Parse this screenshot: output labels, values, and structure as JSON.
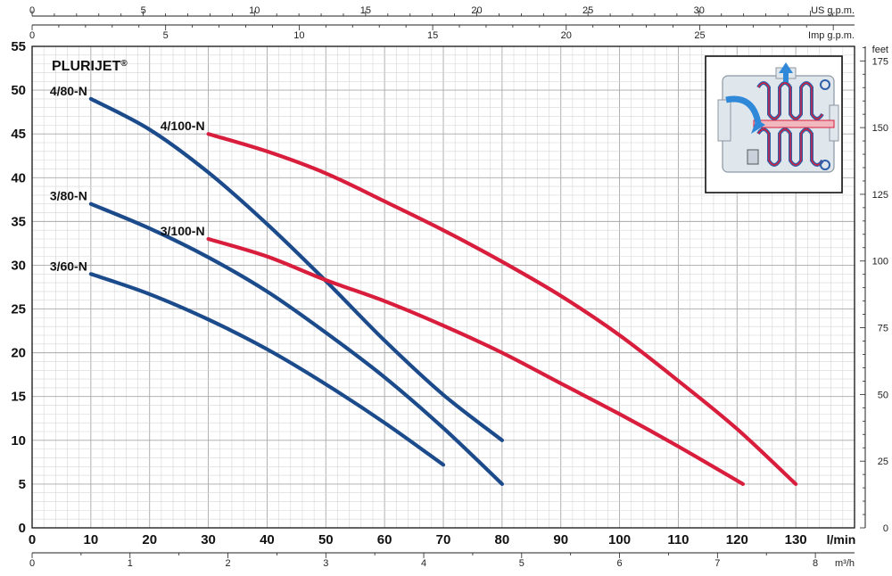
{
  "chart_data": {
    "type": "line",
    "title": "PLURIJET",
    "title_mark": "®",
    "grid": true,
    "xlim": [
      0,
      140
    ],
    "ylim": [
      0,
      55
    ],
    "x_unit": "l/min",
    "x_ticks": [
      "0",
      "10",
      "20",
      "30",
      "40",
      "50",
      "60",
      "70",
      "80",
      "90",
      "100",
      "110",
      "120",
      "130"
    ],
    "y_ticks": [
      "0",
      "5",
      "10",
      "15",
      "20",
      "25",
      "30",
      "35",
      "40",
      "45",
      "50",
      "55"
    ],
    "secondary_axes": {
      "top_us": {
        "unit": "US g.p.m.",
        "ticks": [
          "0",
          "5",
          "10",
          "15",
          "20",
          "25",
          "30"
        ],
        "values": [
          0,
          5,
          10,
          15,
          20,
          25,
          30
        ],
        "lpm_per_unit": 3.785
      },
      "top_imp": {
        "unit": "Imp g.p.m.",
        "ticks": [
          "0",
          "5",
          "10",
          "15",
          "20",
          "25"
        ],
        "values": [
          0,
          5,
          10,
          15,
          20,
          25
        ],
        "lpm_per_unit": 4.546
      },
      "bottom_m3h": {
        "unit": "m³/h",
        "ticks": [
          "0",
          "1",
          "2",
          "3",
          "4",
          "5",
          "6",
          "7",
          "8"
        ],
        "values": [
          0,
          1,
          2,
          3,
          4,
          5,
          6,
          7,
          8
        ],
        "lpm_per_unit": 16.6667
      },
      "right_feet": {
        "unit": "feet",
        "ticks": [
          "0",
          "25",
          "50",
          "75",
          "100",
          "125",
          "150",
          "175"
        ],
        "values": [
          0,
          25,
          50,
          75,
          100,
          125,
          150,
          175
        ],
        "m_per_unit": 0.3048
      }
    },
    "series": [
      {
        "name": "4/80-N",
        "color": "#1c4b8c",
        "x": [
          10,
          20,
          30,
          40,
          50,
          60,
          70,
          80
        ],
        "y": [
          49,
          45.5,
          40.6,
          34.7,
          28.2,
          21.4,
          15.2,
          10
        ]
      },
      {
        "name": "3/80-N",
        "color": "#1c4b8c",
        "x": [
          10,
          20,
          30,
          40,
          50,
          60,
          70,
          80
        ],
        "y": [
          37,
          34.2,
          30.9,
          27,
          22.3,
          17.2,
          11.4,
          5
        ]
      },
      {
        "name": "3/60-N",
        "color": "#1c4b8c",
        "x": [
          10,
          20,
          30,
          40,
          50,
          60,
          70
        ],
        "y": [
          29,
          26.7,
          23.8,
          20.4,
          16.4,
          12,
          7.2
        ]
      },
      {
        "name": "4/100-N",
        "color": "#d81e3c",
        "x": [
          30,
          40,
          50,
          60,
          70,
          80,
          90,
          100,
          110,
          120,
          130
        ],
        "y": [
          45,
          43,
          40.5,
          37.3,
          34,
          30.4,
          26.5,
          22,
          16.8,
          11.3,
          5
        ]
      },
      {
        "name": "3/100-N",
        "color": "#d81e3c",
        "x": [
          30,
          40,
          50,
          60,
          70,
          80,
          90,
          100,
          110,
          121
        ],
        "y": [
          33,
          31,
          28.3,
          25.9,
          23.1,
          20,
          16.5,
          13,
          9.3,
          5
        ]
      }
    ]
  }
}
